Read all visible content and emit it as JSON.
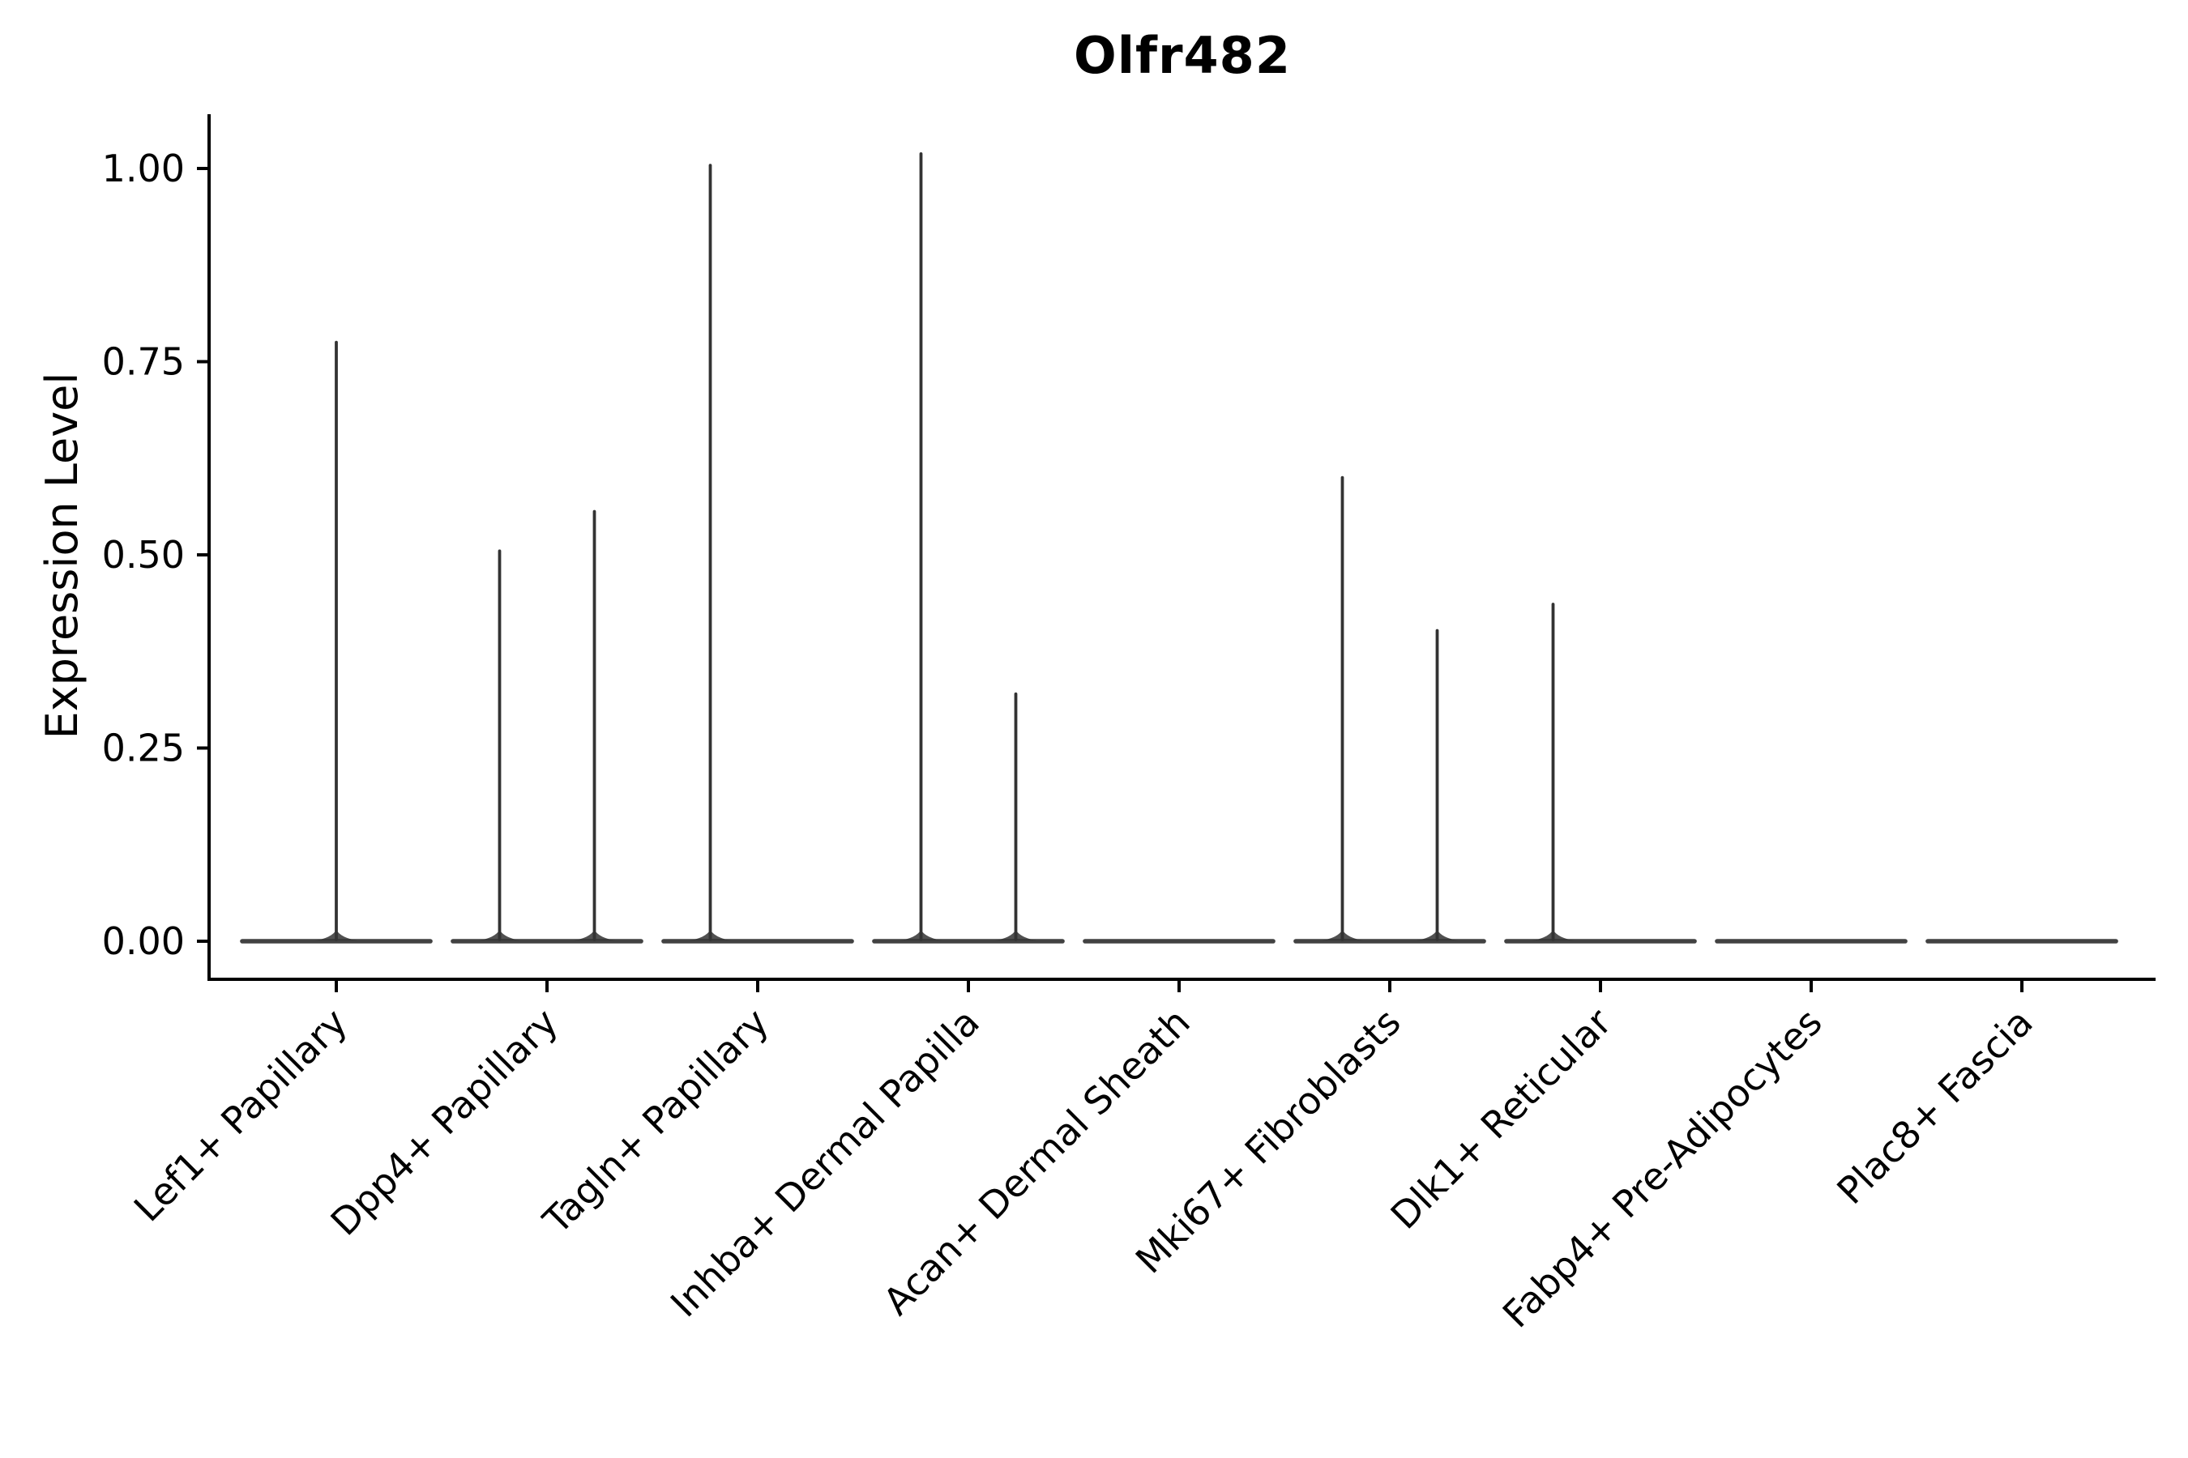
{
  "figure": {
    "background": "#ffffff"
  },
  "chart_data": {
    "type": "violin",
    "title": "Olfr482",
    "xlabel": "",
    "ylabel": "Expression Level",
    "yticks": [
      0.0,
      0.25,
      0.5,
      0.75,
      1.0
    ],
    "ytick_labels": [
      "0.00",
      "0.25",
      "0.50",
      "0.75",
      "1.00"
    ],
    "ylim": [
      -0.05,
      1.07
    ],
    "grid": "off",
    "legend": "none",
    "categories": [
      "Lef1+ Papillary",
      "Dpp4+ Papillary",
      "Tagln+ Papillary",
      "Inhba+ Dermal Papilla",
      "Acan+ Dermal Sheath",
      "Mki67+ Fibroblasts",
      "Dlk1+ Reticular",
      "Fabp4+ Pre-Adipocytes",
      "Plac8+ Fascia"
    ],
    "baseline_value": 0.0,
    "violin_body_halfwidth_frac": 0.458,
    "violins": [
      {
        "category": "Lef1+ Papillary",
        "spikes": [
          {
            "offset": 0.0,
            "max": 0.775
          }
        ]
      },
      {
        "category": "Dpp4+ Papillary",
        "spikes": [
          {
            "offset": -0.225,
            "max": 0.505
          },
          {
            "offset": 0.225,
            "max": 0.556
          }
        ]
      },
      {
        "category": "Tagln+ Papillary",
        "spikes": [
          {
            "offset": -0.225,
            "max": 1.004
          }
        ]
      },
      {
        "category": "Inhba+ Dermal Papilla",
        "spikes": [
          {
            "offset": -0.225,
            "max": 1.019
          },
          {
            "offset": 0.225,
            "max": 0.32
          }
        ]
      },
      {
        "category": "Acan+ Dermal Sheath",
        "spikes": []
      },
      {
        "category": "Mki67+ Fibroblasts",
        "spikes": [
          {
            "offset": -0.225,
            "max": 0.6
          },
          {
            "offset": 0.225,
            "max": 0.402
          }
        ]
      },
      {
        "category": "Dlk1+ Reticular",
        "spikes": [
          {
            "offset": -0.225,
            "max": 0.436
          }
        ]
      },
      {
        "category": "Fabp4+ Pre-Adipocytes",
        "spikes": []
      },
      {
        "category": "Plac8+ Fascia",
        "spikes": []
      }
    ],
    "colors": {
      "violin_stroke": "#333333",
      "axis": "#000000",
      "text": "#000000"
    }
  }
}
